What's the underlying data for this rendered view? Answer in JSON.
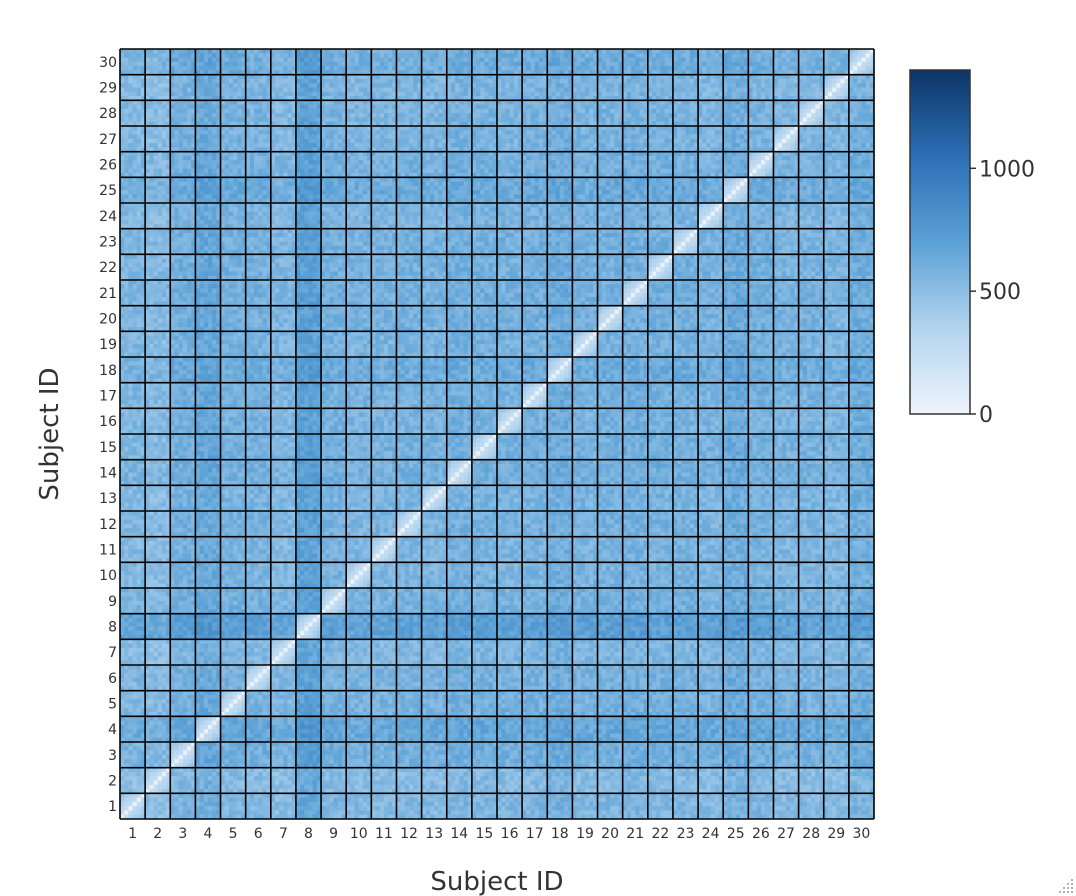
{
  "chart_data": {
    "type": "heatmap",
    "title": "",
    "xlabel": "Subject ID",
    "ylabel": "Subject ID",
    "x_ticks": [
      "1",
      "2",
      "3",
      "4",
      "5",
      "6",
      "7",
      "8",
      "9",
      "10",
      "11",
      "12",
      "13",
      "14",
      "15",
      "16",
      "17",
      "18",
      "19",
      "20",
      "21",
      "22",
      "23",
      "24",
      "25",
      "26",
      "27",
      "28",
      "29",
      "30"
    ],
    "y_ticks": [
      "1",
      "2",
      "3",
      "4",
      "5",
      "6",
      "7",
      "8",
      "9",
      "10",
      "11",
      "12",
      "13",
      "14",
      "15",
      "16",
      "17",
      "18",
      "19",
      "20",
      "21",
      "22",
      "23",
      "24",
      "25",
      "26",
      "27",
      "28",
      "29",
      "30"
    ],
    "subjects": 30,
    "diagonal_value": 0,
    "colorscale": {
      "range": [
        0,
        1400
      ],
      "ticks": [
        {
          "value": 0,
          "label": "0"
        },
        {
          "value": 500,
          "label": "500"
        },
        {
          "value": 1000,
          "label": "1000"
        }
      ],
      "colors": [
        "#eef4fc",
        "#b3d4ee",
        "#5ba1d6",
        "#2c6fb5",
        "#0c3466"
      ]
    },
    "subject_mean_values": [
      520,
      470,
      620,
      720,
      600,
      580,
      520,
      820,
      600,
      560,
      560,
      580,
      560,
      620,
      600,
      580,
      600,
      660,
      580,
      600,
      620,
      600,
      600,
      560,
      680,
      600,
      560,
      560,
      540,
      640
    ],
    "grid": "black block borders around each subject pair"
  }
}
